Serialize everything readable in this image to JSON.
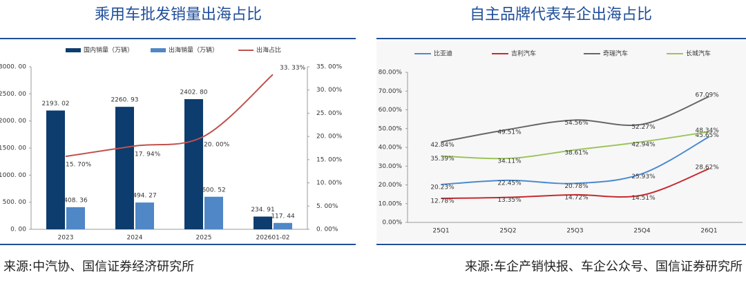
{
  "chart_data": [
    {
      "type": "bar",
      "title": "乘用车批发销量出海占比",
      "source": "来源:中汽协、国信证券经济研究所",
      "categories": [
        "2023",
        "2024",
        "2025",
        "202601-02"
      ],
      "series": [
        {
          "name": "国内销量（万辆）",
          "color": "#0d3c6e",
          "values": [
            2193.02,
            2260.93,
            2402.8,
            234.91
          ],
          "value_labels": [
            "2193. 02",
            "2260. 93",
            "2402. 80",
            "234. 91"
          ]
        },
        {
          "name": "出海销量（万辆）",
          "color": "#4f87c7",
          "values": [
            408.36,
            494.27,
            600.52,
            117.44
          ],
          "value_labels": [
            "408. 36",
            "494. 27",
            "600. 52",
            "117. 44"
          ]
        },
        {
          "name": "出海占比",
          "color": "#c0504d",
          "type": "line",
          "axis": "y2",
          "values": [
            15.7,
            17.94,
            20.0,
            33.33
          ],
          "value_labels": [
            "15. 70%",
            "17. 94%",
            "20. 00%",
            "33. 33%"
          ]
        }
      ],
      "ylim": [
        0,
        3000
      ],
      "yticks": [
        {
          "value": 0,
          "label": "0. 00"
        },
        {
          "value": 500,
          "label": "500. 00"
        },
        {
          "value": 1000,
          "label": "1000. 00"
        },
        {
          "value": 1500,
          "label": "1500. 00"
        },
        {
          "value": 2000,
          "label": "2000. 00"
        },
        {
          "value": 2500,
          "label": "2500. 00"
        },
        {
          "value": 3000,
          "label": "3000. 00"
        }
      ],
      "y2lim": [
        0,
        35
      ],
      "y2ticks": [
        {
          "value": 0,
          "label": "0. 00%"
        },
        {
          "value": 5,
          "label": "5. 00%"
        },
        {
          "value": 10,
          "label": "10. 00%"
        },
        {
          "value": 15,
          "label": "15. 00%"
        },
        {
          "value": 20,
          "label": "20. 00%"
        },
        {
          "value": 25,
          "label": "25. 00%"
        },
        {
          "value": 30,
          "label": "30. 00%"
        },
        {
          "value": 35,
          "label": "35. 00%"
        }
      ]
    },
    {
      "type": "line",
      "title": "自主品牌代表车企出海占比",
      "source": "来源:车企产销快报、车企公众号、国信证券研究所",
      "categories": [
        "25Q1",
        "25Q2",
        "25Q3",
        "25Q4",
        "26Q1"
      ],
      "series": [
        {
          "name": "比亚迪",
          "color": "#4a8ad0",
          "values": [
            20.23,
            22.45,
            20.78,
            25.93,
            45.65
          ],
          "value_labels": [
            "20.23%",
            "22.45%",
            "20.78%",
            "25.93%",
            "45.65%"
          ]
        },
        {
          "name": "吉利汽车",
          "color": "#c8282e",
          "values": [
            12.78,
            13.35,
            14.72,
            14.51,
            28.62
          ],
          "value_labels": [
            "12.78%",
            "13.35%",
            "14.72%",
            "14.51%",
            "28.62%"
          ]
        },
        {
          "name": "奇瑞汽车",
          "color": "#666666",
          "values": [
            42.84,
            49.51,
            54.56,
            52.27,
            67.09
          ],
          "value_labels": [
            "42.84%",
            "49.51%",
            "54.56%",
            "52.27%",
            "67.09%"
          ]
        },
        {
          "name": "长城汽车",
          "color": "#9bc45a",
          "values": [
            35.39,
            34.11,
            38.61,
            42.94,
            48.34
          ],
          "value_labels": [
            "35.39%",
            "34.11%",
            "38.61%",
            "42.94%",
            "48.34%"
          ]
        }
      ],
      "ylim": [
        0,
        80
      ],
      "yticks": [
        {
          "value": 0,
          "label": "0.00%"
        },
        {
          "value": 10,
          "label": "10.00%"
        },
        {
          "value": 20,
          "label": "20.00%"
        },
        {
          "value": 30,
          "label": "30.00%"
        },
        {
          "value": 40,
          "label": "40.00%"
        },
        {
          "value": 50,
          "label": "50.00%"
        },
        {
          "value": 60,
          "label": "60.00%"
        },
        {
          "value": 70,
          "label": "70.00%"
        },
        {
          "value": 80,
          "label": "80.00%"
        }
      ]
    }
  ]
}
